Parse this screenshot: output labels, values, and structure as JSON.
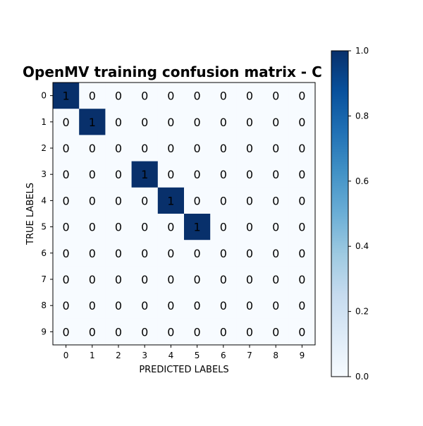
{
  "chart_data": {
    "type": "heatmap",
    "title": "OpenMV training confusion matrix - C",
    "xlabel": "PREDICTED LABELS",
    "ylabel": "TRUE LABELS",
    "x_categories": [
      "0",
      "1",
      "2",
      "3",
      "4",
      "5",
      "6",
      "7",
      "8",
      "9"
    ],
    "y_categories": [
      "0",
      "1",
      "2",
      "3",
      "4",
      "5",
      "6",
      "7",
      "8",
      "9"
    ],
    "values": [
      [
        1,
        0,
        0,
        0,
        0,
        0,
        0,
        0,
        0,
        0
      ],
      [
        0,
        1,
        0,
        0,
        0,
        0,
        0,
        0,
        0,
        0
      ],
      [
        0,
        0,
        0,
        0,
        0,
        0,
        0,
        0,
        0,
        0
      ],
      [
        0,
        0,
        0,
        1,
        0,
        0,
        0,
        0,
        0,
        0
      ],
      [
        0,
        0,
        0,
        0,
        1,
        0,
        0,
        0,
        0,
        0
      ],
      [
        0,
        0,
        0,
        0,
        0,
        1,
        0,
        0,
        0,
        0
      ],
      [
        0,
        0,
        0,
        0,
        0,
        0,
        0,
        0,
        0,
        0
      ],
      [
        0,
        0,
        0,
        0,
        0,
        0,
        0,
        0,
        0,
        0
      ],
      [
        0,
        0,
        0,
        0,
        0,
        0,
        0,
        0,
        0,
        0
      ],
      [
        0,
        0,
        0,
        0,
        0,
        0,
        0,
        0,
        0,
        0
      ]
    ],
    "colorbar": {
      "colormap": "Blues",
      "range": [
        0,
        1
      ],
      "ticks": [
        "0.0",
        "0.2",
        "0.4",
        "0.6",
        "0.8",
        "1.0"
      ],
      "low_color": "#f7fbff",
      "high_color": "#08306b"
    }
  }
}
